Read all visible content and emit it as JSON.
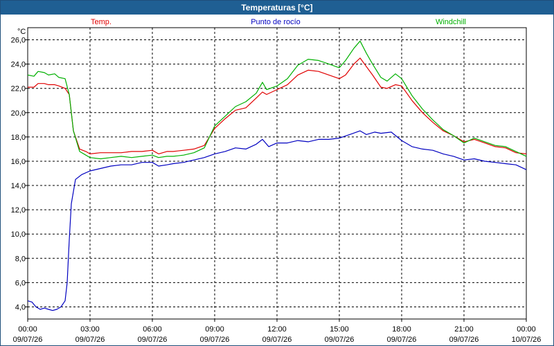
{
  "window": {
    "title": "Temperaturas [°C]"
  },
  "chart_data": {
    "type": "line",
    "title": "Temperaturas [°C]",
    "ylabel": "°C",
    "ylim": [
      3.0,
      27.0
    ],
    "yticks": [
      "26,0",
      "24,0",
      "22,0",
      "20,0",
      "18,0",
      "16,0",
      "14,0",
      "12,0",
      "10,0",
      "8,0",
      "6,0",
      "4,0"
    ],
    "ytick_values": [
      26,
      24,
      22,
      20,
      18,
      16,
      14,
      12,
      10,
      8,
      6,
      4
    ],
    "xlim": [
      0,
      24
    ],
    "xticks": [
      {
        "time": "00:00",
        "date": "09/07/26",
        "h": 0
      },
      {
        "time": "03:00",
        "date": "09/07/26",
        "h": 3
      },
      {
        "time": "06:00",
        "date": "09/07/26",
        "h": 6
      },
      {
        "time": "09:00",
        "date": "09/07/26",
        "h": 9
      },
      {
        "time": "12:00",
        "date": "09/07/26",
        "h": 12
      },
      {
        "time": "15:00",
        "date": "09/07/26",
        "h": 15
      },
      {
        "time": "18:00",
        "date": "09/07/26",
        "h": 18
      },
      {
        "time": "21:00",
        "date": "09/07/26",
        "h": 21
      },
      {
        "time": "00:00",
        "date": "10/07/26",
        "h": 24
      }
    ],
    "grid": true,
    "legend_position": "top",
    "series": [
      {
        "name": "Temp.",
        "color": "#e00000",
        "points": [
          [
            0,
            22.1
          ],
          [
            0.3,
            22.1
          ],
          [
            0.5,
            22.4
          ],
          [
            0.8,
            22.4
          ],
          [
            1.0,
            22.3
          ],
          [
            1.3,
            22.3
          ],
          [
            1.5,
            22.2
          ],
          [
            1.8,
            22.0
          ],
          [
            2.0,
            21.5
          ],
          [
            2.2,
            18.5
          ],
          [
            2.5,
            17.0
          ],
          [
            2.8,
            16.8
          ],
          [
            3.0,
            16.6
          ],
          [
            3.5,
            16.7
          ],
          [
            4.0,
            16.7
          ],
          [
            4.5,
            16.7
          ],
          [
            5.0,
            16.8
          ],
          [
            5.5,
            16.8
          ],
          [
            6.0,
            16.9
          ],
          [
            6.3,
            16.6
          ],
          [
            6.7,
            16.8
          ],
          [
            7.0,
            16.8
          ],
          [
            7.5,
            16.9
          ],
          [
            8.0,
            17.0
          ],
          [
            8.5,
            17.3
          ],
          [
            9.0,
            18.7
          ],
          [
            9.5,
            19.5
          ],
          [
            10.0,
            20.2
          ],
          [
            10.5,
            20.4
          ],
          [
            11.0,
            21.2
          ],
          [
            11.3,
            21.7
          ],
          [
            11.5,
            21.5
          ],
          [
            12.0,
            21.9
          ],
          [
            12.5,
            22.3
          ],
          [
            13.0,
            23.1
          ],
          [
            13.5,
            23.5
          ],
          [
            14.0,
            23.4
          ],
          [
            14.5,
            23.1
          ],
          [
            15.0,
            22.8
          ],
          [
            15.3,
            23.1
          ],
          [
            15.7,
            24.0
          ],
          [
            16.0,
            24.5
          ],
          [
            16.3,
            23.8
          ],
          [
            16.6,
            23.1
          ],
          [
            17.0,
            22.1
          ],
          [
            17.3,
            22.0
          ],
          [
            17.7,
            22.3
          ],
          [
            18.0,
            22.2
          ],
          [
            18.5,
            21.0
          ],
          [
            19.0,
            20.0
          ],
          [
            19.5,
            19.2
          ],
          [
            20.0,
            18.5
          ],
          [
            20.5,
            18.1
          ],
          [
            21.0,
            17.6
          ],
          [
            21.5,
            17.8
          ],
          [
            22.0,
            17.5
          ],
          [
            22.5,
            17.2
          ],
          [
            23.0,
            17.1
          ],
          [
            23.5,
            16.7
          ],
          [
            24.0,
            16.6
          ]
        ]
      },
      {
        "name": "Punto de rocío",
        "color": "#0000c0",
        "points": [
          [
            0,
            4.5
          ],
          [
            0.2,
            4.4
          ],
          [
            0.4,
            4.0
          ],
          [
            0.6,
            3.8
          ],
          [
            0.8,
            3.9
          ],
          [
            1.0,
            3.8
          ],
          [
            1.2,
            3.7
          ],
          [
            1.4,
            3.8
          ],
          [
            1.6,
            4.0
          ],
          [
            1.8,
            4.5
          ],
          [
            1.9,
            6.0
          ],
          [
            2.0,
            9.5
          ],
          [
            2.1,
            12.5
          ],
          [
            2.3,
            14.5
          ],
          [
            2.6,
            14.9
          ],
          [
            3.0,
            15.2
          ],
          [
            3.5,
            15.4
          ],
          [
            4.0,
            15.6
          ],
          [
            4.5,
            15.7
          ],
          [
            5.0,
            15.7
          ],
          [
            5.5,
            15.9
          ],
          [
            6.0,
            15.9
          ],
          [
            6.3,
            15.6
          ],
          [
            6.7,
            15.7
          ],
          [
            7.0,
            15.8
          ],
          [
            7.5,
            15.9
          ],
          [
            8.0,
            16.1
          ],
          [
            8.5,
            16.3
          ],
          [
            9.0,
            16.6
          ],
          [
            9.5,
            16.8
          ],
          [
            10.0,
            17.1
          ],
          [
            10.5,
            17.0
          ],
          [
            11.0,
            17.4
          ],
          [
            11.3,
            17.8
          ],
          [
            11.6,
            17.2
          ],
          [
            12.0,
            17.5
          ],
          [
            12.5,
            17.5
          ],
          [
            13.0,
            17.7
          ],
          [
            13.5,
            17.6
          ],
          [
            14.0,
            17.8
          ],
          [
            14.5,
            17.8
          ],
          [
            15.0,
            17.9
          ],
          [
            15.5,
            18.2
          ],
          [
            16.0,
            18.5
          ],
          [
            16.3,
            18.2
          ],
          [
            16.7,
            18.4
          ],
          [
            17.0,
            18.3
          ],
          [
            17.5,
            18.4
          ],
          [
            18.0,
            17.7
          ],
          [
            18.5,
            17.2
          ],
          [
            19.0,
            17.0
          ],
          [
            19.5,
            16.9
          ],
          [
            20.0,
            16.6
          ],
          [
            20.5,
            16.4
          ],
          [
            21.0,
            16.1
          ],
          [
            21.5,
            16.2
          ],
          [
            22.0,
            16.0
          ],
          [
            22.5,
            15.9
          ],
          [
            23.0,
            15.8
          ],
          [
            23.5,
            15.7
          ],
          [
            24.0,
            15.3
          ]
        ]
      },
      {
        "name": "Windchill",
        "color": "#00b000",
        "points": [
          [
            0,
            23.1
          ],
          [
            0.3,
            23.0
          ],
          [
            0.5,
            23.4
          ],
          [
            0.8,
            23.3
          ],
          [
            1.0,
            23.1
          ],
          [
            1.3,
            23.2
          ],
          [
            1.5,
            22.9
          ],
          [
            1.8,
            22.8
          ],
          [
            2.0,
            21.5
          ],
          [
            2.2,
            18.5
          ],
          [
            2.5,
            16.8
          ],
          [
            2.8,
            16.5
          ],
          [
            3.0,
            16.3
          ],
          [
            3.5,
            16.2
          ],
          [
            4.0,
            16.3
          ],
          [
            4.5,
            16.4
          ],
          [
            5.0,
            16.3
          ],
          [
            5.5,
            16.4
          ],
          [
            6.0,
            16.5
          ],
          [
            6.3,
            16.3
          ],
          [
            6.7,
            16.4
          ],
          [
            7.0,
            16.4
          ],
          [
            7.5,
            16.5
          ],
          [
            8.0,
            16.7
          ],
          [
            8.5,
            17.1
          ],
          [
            9.0,
            18.9
          ],
          [
            9.5,
            19.7
          ],
          [
            10.0,
            20.5
          ],
          [
            10.5,
            20.9
          ],
          [
            11.0,
            21.6
          ],
          [
            11.3,
            22.5
          ],
          [
            11.5,
            21.9
          ],
          [
            12.0,
            22.2
          ],
          [
            12.5,
            22.8
          ],
          [
            13.0,
            23.9
          ],
          [
            13.5,
            24.4
          ],
          [
            14.0,
            24.3
          ],
          [
            14.5,
            24.0
          ],
          [
            15.0,
            23.7
          ],
          [
            15.3,
            24.3
          ],
          [
            15.7,
            25.3
          ],
          [
            16.0,
            25.9
          ],
          [
            16.3,
            24.9
          ],
          [
            16.6,
            24.0
          ],
          [
            17.0,
            22.9
          ],
          [
            17.3,
            22.6
          ],
          [
            17.7,
            23.2
          ],
          [
            18.0,
            22.8
          ],
          [
            18.5,
            21.4
          ],
          [
            19.0,
            20.3
          ],
          [
            19.5,
            19.4
          ],
          [
            20.0,
            18.6
          ],
          [
            20.5,
            18.1
          ],
          [
            21.0,
            17.5
          ],
          [
            21.5,
            17.9
          ],
          [
            22.0,
            17.6
          ],
          [
            22.5,
            17.3
          ],
          [
            23.0,
            17.2
          ],
          [
            23.5,
            16.8
          ],
          [
            24.0,
            16.4
          ]
        ]
      }
    ]
  }
}
